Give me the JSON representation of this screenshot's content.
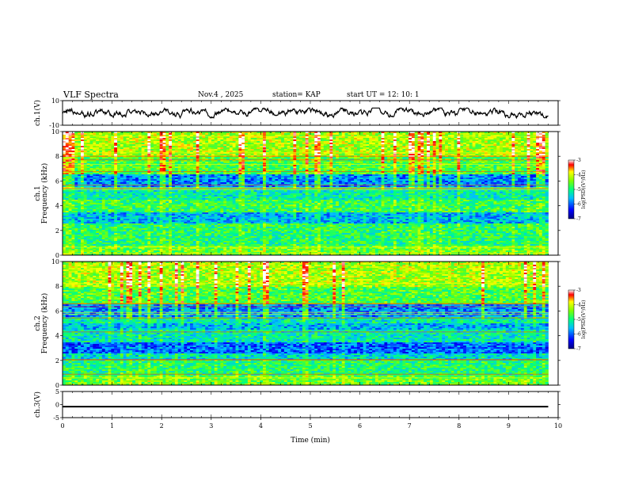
{
  "header": {
    "title": "VLF Spectra",
    "date": "Nov.4 , 2025",
    "station": "station= KAP",
    "start": "start UT = 12: 10: 1"
  },
  "chart_data": [
    {
      "type": "line",
      "name": "ch1-waveform",
      "ylabel": "ch.1(V)",
      "ylim": [
        -10,
        10
      ],
      "yticks": [
        "10",
        "-10"
      ],
      "xlim": [
        0,
        10
      ],
      "data_extent_min": 9.8,
      "typical_range": [
        -4,
        4
      ]
    },
    {
      "type": "heatmap",
      "name": "ch1-spectrogram",
      "ylabel": "ch.1\nFrequency (kHz)",
      "ylim": [
        0,
        10
      ],
      "yticks": [
        "0",
        "2",
        "4",
        "6",
        "8",
        "10"
      ],
      "xlim": [
        0,
        10
      ],
      "colorbar": {
        "label": "log(PSD)(V²/Hz)",
        "range": [
          -7,
          -3
        ],
        "ticks": [
          "-3",
          "-4",
          "-5",
          "-6",
          "-7"
        ]
      }
    },
    {
      "type": "heatmap",
      "name": "ch2-spectrogram",
      "ylabel": "ch.2\nFrequency (kHz)",
      "ylim": [
        0,
        10
      ],
      "yticks": [
        "0",
        "2",
        "4",
        "6",
        "8",
        "10"
      ],
      "xlim": [
        0,
        10
      ],
      "colorbar": {
        "label": "log(PSD)(V²/Hz)",
        "range": [
          -7,
          -3
        ],
        "ticks": [
          "-3",
          "-4",
          "-5",
          "-6",
          "-7"
        ]
      }
    },
    {
      "type": "line",
      "name": "ch3-waveform",
      "ylabel": "ch.3(V)",
      "ylim": [
        -5,
        5
      ],
      "yticks": [
        "5",
        "0",
        "-5"
      ],
      "xlim": [
        0,
        10
      ],
      "level_band": [
        -1.1,
        -0.5
      ]
    }
  ],
  "xaxis": {
    "label": "Time (min)",
    "ticks": [
      "0",
      "1",
      "2",
      "3",
      "4",
      "5",
      "6",
      "7",
      "8",
      "9",
      "10"
    ]
  },
  "colors": {
    "frame": "#000000"
  }
}
